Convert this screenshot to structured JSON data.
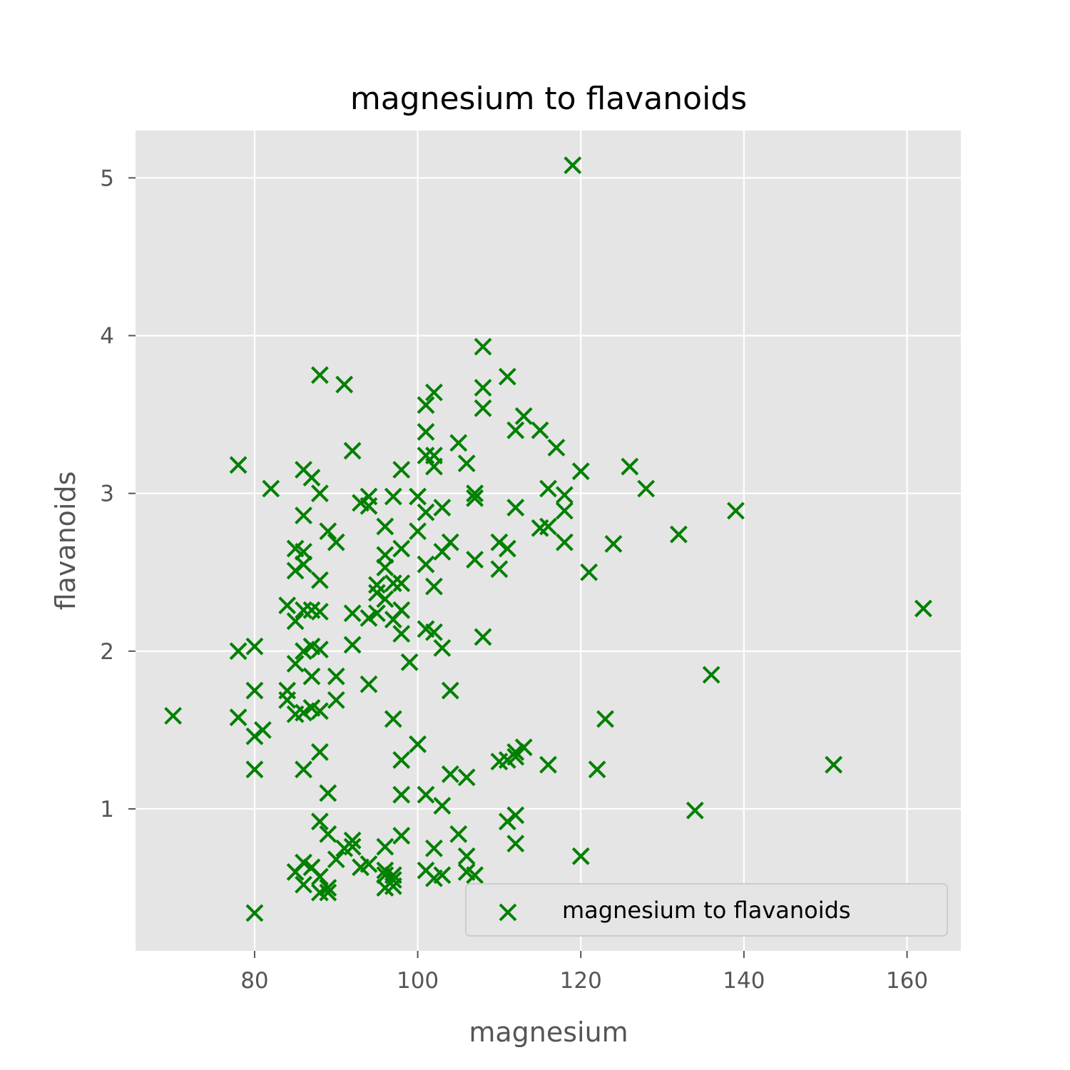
{
  "chart_data": {
    "type": "scatter",
    "title": "magnesium to flavanoids",
    "xlabel": "magnesium",
    "ylabel": "flavanoids",
    "xlim": [
      65.4,
      166.6
    ],
    "ylim": [
      0.1,
      5.3
    ],
    "xticks": [
      80,
      100,
      120,
      140,
      160
    ],
    "yticks": [
      1,
      2,
      3,
      4,
      5
    ],
    "grid": true,
    "background": "#e5e5e5",
    "marker": "x",
    "marker_color": "#008000",
    "legend": {
      "position": "lower-right",
      "entries": [
        "magnesium to flavanoids"
      ]
    },
    "series": [
      {
        "name": "magnesium to flavanoids",
        "points": [
          [
            70,
            1.59
          ],
          [
            78,
            3.18
          ],
          [
            78,
            2.0
          ],
          [
            78,
            1.58
          ],
          [
            80,
            2.03
          ],
          [
            80,
            1.75
          ],
          [
            80,
            1.46
          ],
          [
            80,
            1.25
          ],
          [
            80,
            0.34
          ],
          [
            81,
            1.5
          ],
          [
            82,
            3.03
          ],
          [
            84,
            2.29
          ],
          [
            84,
            1.75
          ],
          [
            84,
            1.69
          ],
          [
            85,
            2.65
          ],
          [
            85,
            2.51
          ],
          [
            85,
            2.19
          ],
          [
            85,
            1.92
          ],
          [
            85,
            1.6
          ],
          [
            85,
            0.6
          ],
          [
            86,
            3.15
          ],
          [
            86,
            2.86
          ],
          [
            86,
            2.63
          ],
          [
            86,
            2.55
          ],
          [
            86,
            2.26
          ],
          [
            86,
            2.0
          ],
          [
            86,
            1.61
          ],
          [
            86,
            1.25
          ],
          [
            86,
            0.66
          ],
          [
            86,
            0.52
          ],
          [
            87,
            3.1
          ],
          [
            87,
            2.26
          ],
          [
            87,
            2.03
          ],
          [
            87,
            1.84
          ],
          [
            87,
            1.64
          ],
          [
            87,
            0.63
          ],
          [
            88,
            3.75
          ],
          [
            88,
            3.0
          ],
          [
            88,
            2.45
          ],
          [
            88,
            2.25
          ],
          [
            88,
            2.01
          ],
          [
            88,
            1.62
          ],
          [
            88,
            1.36
          ],
          [
            88,
            0.92
          ],
          [
            88,
            0.47
          ],
          [
            88,
            0.57
          ],
          [
            89,
            2.76
          ],
          [
            89,
            1.1
          ],
          [
            89,
            0.84
          ],
          [
            89,
            0.5
          ],
          [
            89,
            0.47
          ],
          [
            90,
            2.69
          ],
          [
            90,
            1.84
          ],
          [
            90,
            1.69
          ],
          [
            90,
            0.68
          ],
          [
            91,
            3.69
          ],
          [
            91,
            0.75
          ],
          [
            92,
            3.27
          ],
          [
            92,
            2.24
          ],
          [
            92,
            2.04
          ],
          [
            92,
            0.8
          ],
          [
            92,
            0.76
          ],
          [
            93,
            2.94
          ],
          [
            93,
            0.63
          ],
          [
            94,
            2.98
          ],
          [
            94,
            2.92
          ],
          [
            94,
            2.21
          ],
          [
            94,
            1.79
          ],
          [
            94,
            0.65
          ],
          [
            95,
            2.42
          ],
          [
            95,
            2.37
          ],
          [
            95,
            2.24
          ],
          [
            96,
            2.79
          ],
          [
            96,
            2.61
          ],
          [
            96,
            2.53
          ],
          [
            96,
            2.33
          ],
          [
            96,
            0.76
          ],
          [
            96,
            0.61
          ],
          [
            96,
            0.58
          ],
          [
            96,
            0.5
          ],
          [
            97,
            2.98
          ],
          [
            97,
            2.43
          ],
          [
            97,
            2.2
          ],
          [
            97,
            1.57
          ],
          [
            97,
            0.58
          ],
          [
            97,
            0.55
          ],
          [
            97,
            0.51
          ],
          [
            98,
            3.15
          ],
          [
            98,
            2.65
          ],
          [
            98,
            2.43
          ],
          [
            98,
            2.26
          ],
          [
            98,
            2.11
          ],
          [
            98,
            1.31
          ],
          [
            98,
            1.09
          ],
          [
            98,
            0.83
          ],
          [
            99,
            1.93
          ],
          [
            100,
            2.98
          ],
          [
            100,
            2.76
          ],
          [
            100,
            1.41
          ],
          [
            101,
            3.56
          ],
          [
            101,
            3.39
          ],
          [
            101,
            3.24
          ],
          [
            101,
            2.88
          ],
          [
            101,
            2.55
          ],
          [
            101,
            2.14
          ],
          [
            101,
            1.09
          ],
          [
            101,
            0.61
          ],
          [
            102,
            3.64
          ],
          [
            102,
            3.24
          ],
          [
            102,
            3.17
          ],
          [
            102,
            2.41
          ],
          [
            102,
            2.12
          ],
          [
            102,
            0.75
          ],
          [
            102,
            0.56
          ],
          [
            103,
            2.91
          ],
          [
            103,
            2.63
          ],
          [
            103,
            2.02
          ],
          [
            103,
            1.02
          ],
          [
            103,
            0.58
          ],
          [
            104,
            2.69
          ],
          [
            104,
            1.75
          ],
          [
            104,
            1.22
          ],
          [
            105,
            3.32
          ],
          [
            105,
            0.84
          ],
          [
            106,
            3.19
          ],
          [
            106,
            1.2
          ],
          [
            106,
            0.7
          ],
          [
            106,
            0.6
          ],
          [
            107,
            3.0
          ],
          [
            107,
            2.97
          ],
          [
            107,
            2.58
          ],
          [
            107,
            0.58
          ],
          [
            108,
            3.93
          ],
          [
            108,
            3.67
          ],
          [
            108,
            3.54
          ],
          [
            108,
            2.09
          ],
          [
            110,
            2.69
          ],
          [
            110,
            2.52
          ],
          [
            110,
            1.3
          ],
          [
            111,
            3.74
          ],
          [
            111,
            2.65
          ],
          [
            111,
            1.31
          ],
          [
            111,
            0.92
          ],
          [
            112,
            3.4
          ],
          [
            112,
            2.91
          ],
          [
            112,
            1.36
          ],
          [
            112,
            1.33
          ],
          [
            112,
            0.96
          ],
          [
            112,
            0.78
          ],
          [
            113,
            3.49
          ],
          [
            113,
            1.39
          ],
          [
            115,
            3.4
          ],
          [
            115,
            2.78
          ],
          [
            116,
            3.03
          ],
          [
            116,
            2.79
          ],
          [
            116,
            1.28
          ],
          [
            117,
            3.29
          ],
          [
            118,
            2.99
          ],
          [
            118,
            2.89
          ],
          [
            118,
            2.69
          ],
          [
            119,
            5.08
          ],
          [
            120,
            3.14
          ],
          [
            120,
            0.7
          ],
          [
            121,
            2.5
          ],
          [
            122,
            1.25
          ],
          [
            123,
            1.57
          ],
          [
            124,
            2.68
          ],
          [
            126,
            3.17
          ],
          [
            128,
            3.03
          ],
          [
            132,
            2.74
          ],
          [
            134,
            0.99
          ],
          [
            136,
            1.85
          ],
          [
            139,
            2.89
          ],
          [
            151,
            1.28
          ],
          [
            162,
            2.27
          ]
        ]
      }
    ]
  }
}
